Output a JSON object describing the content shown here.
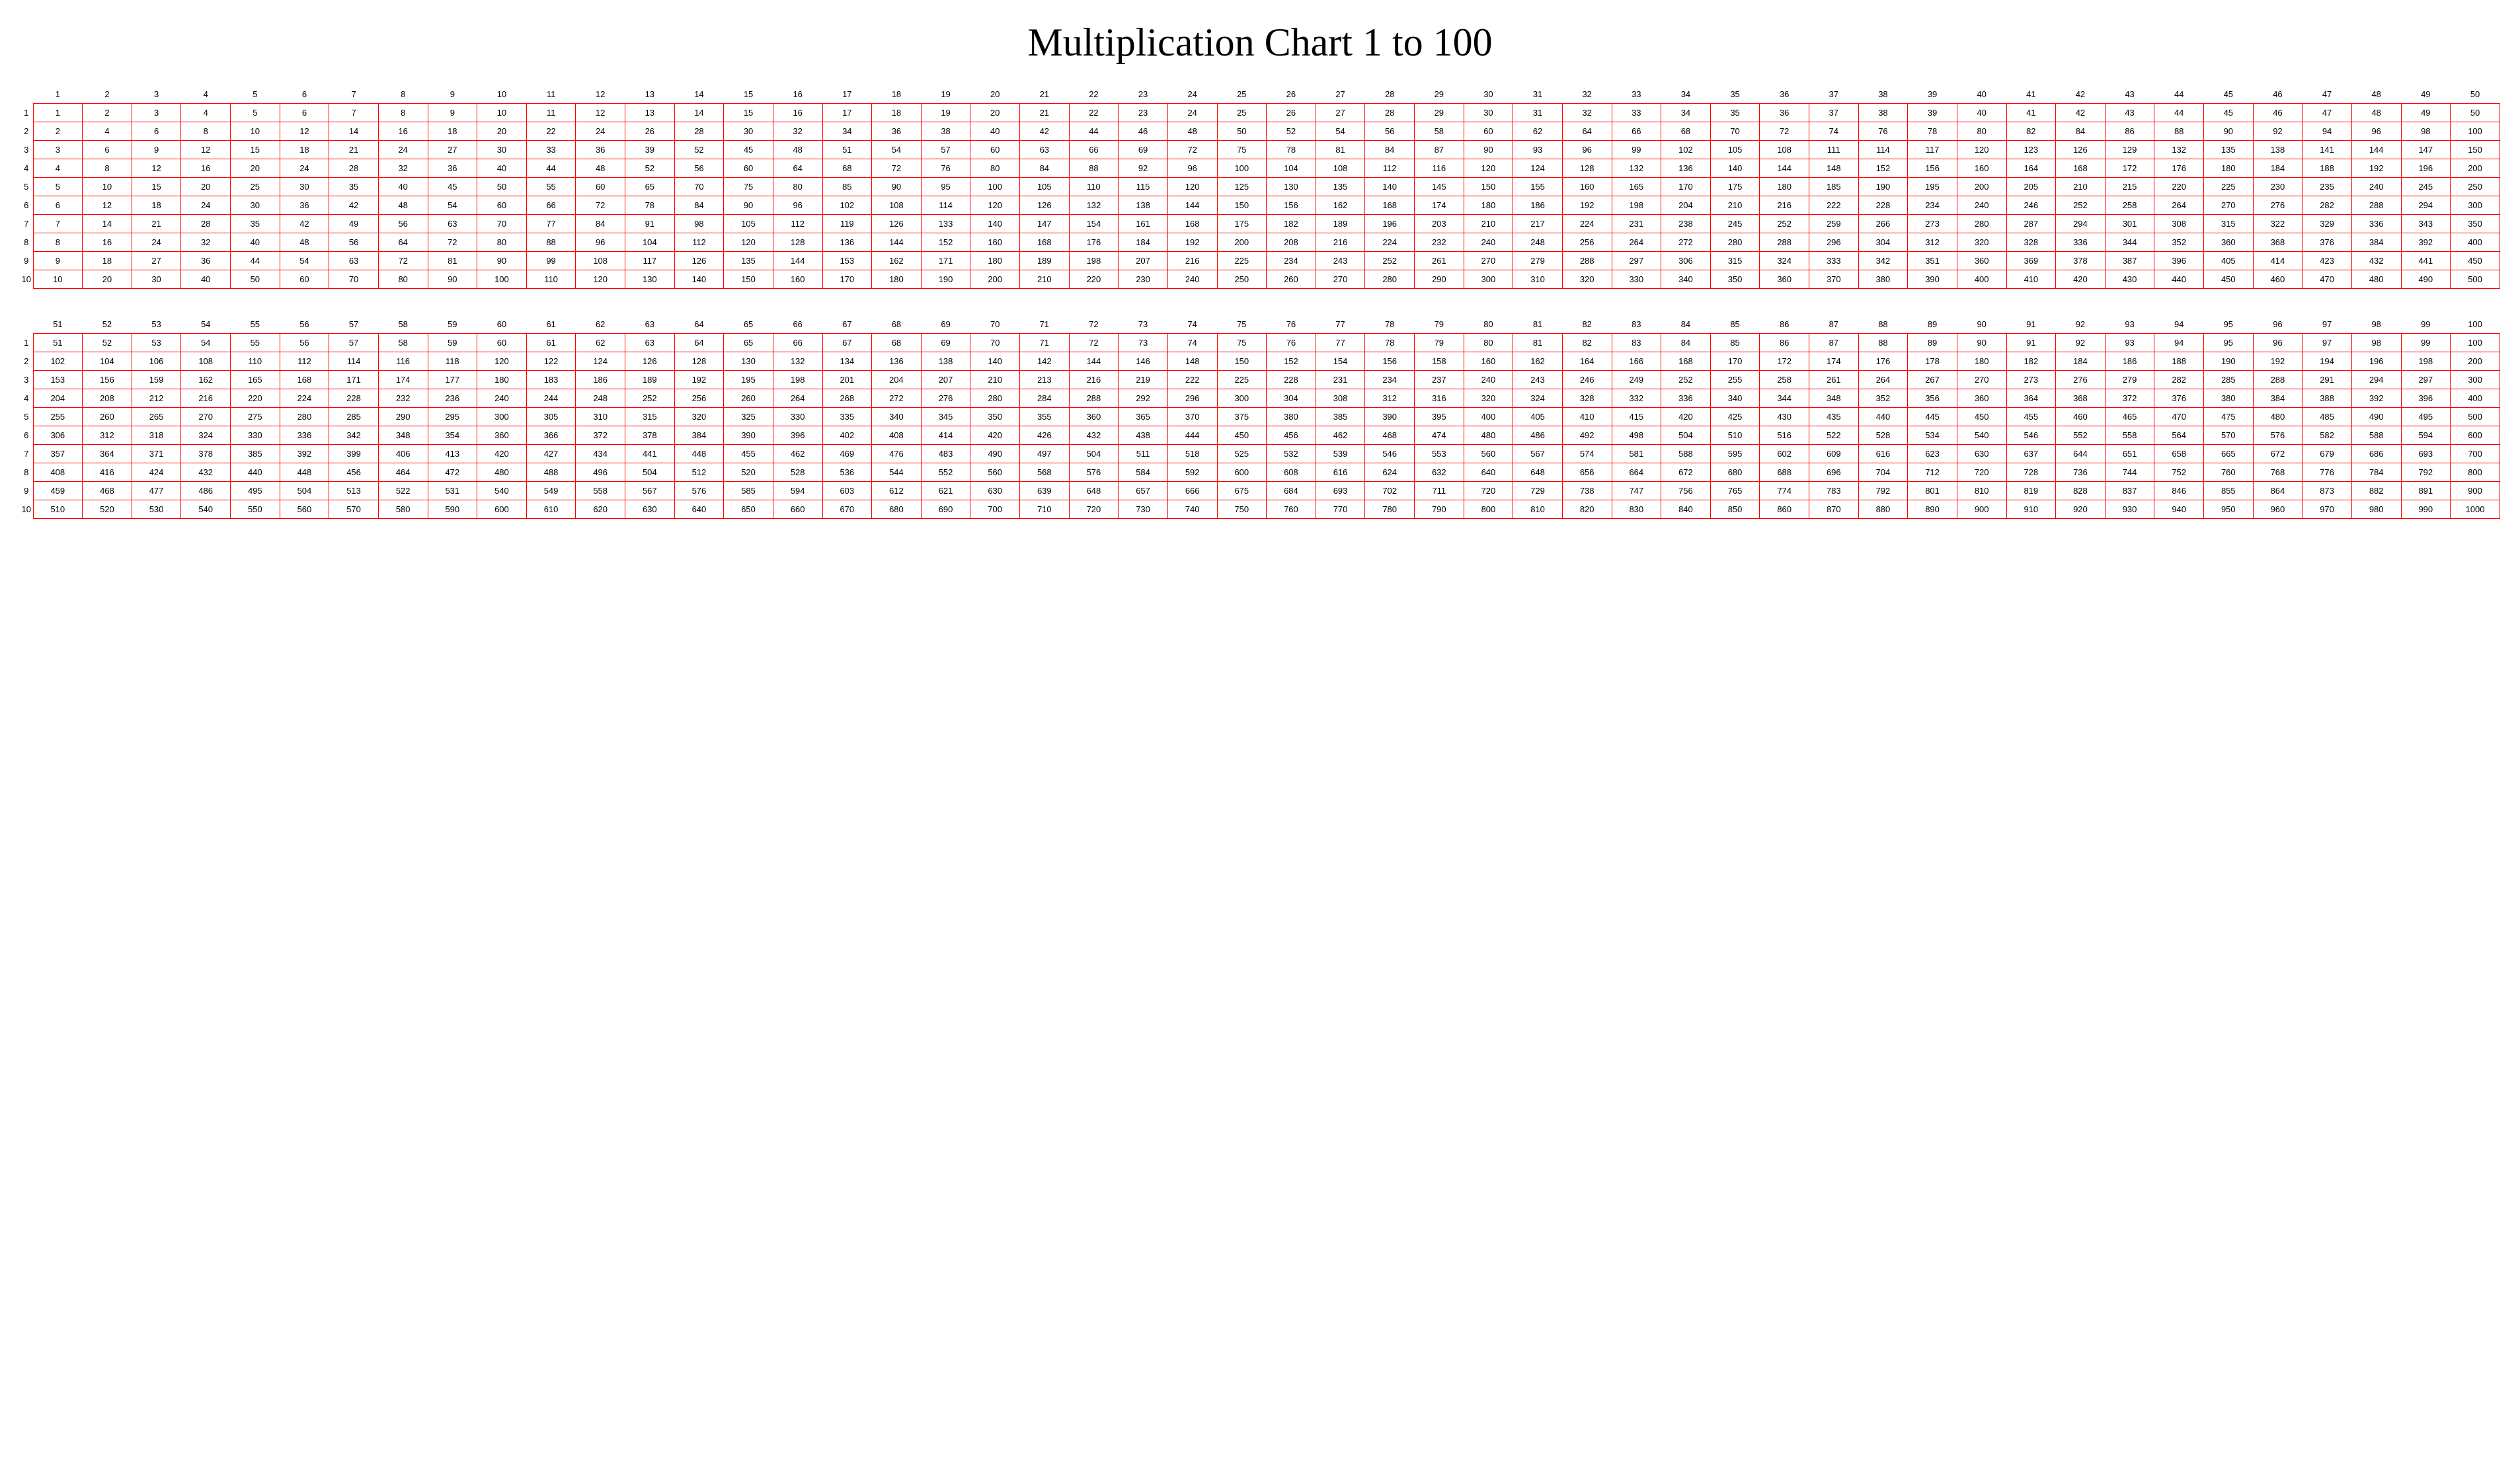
{
  "title": "Multiplication Chart 1 to 100",
  "style": {
    "border_color": "#ff0000",
    "background_color": "#ffffff",
    "text_color": "#000000",
    "title_fontsize": 60,
    "cell_fontsize": 13,
    "title_font_family": "Georgia, 'Times New Roman', serif",
    "cell_font_family": "Arial, Helvetica, sans-serif",
    "border_width": 1
  },
  "chart": {
    "type": "table",
    "row_range": [
      1,
      10
    ],
    "blocks": [
      {
        "col_start": 1,
        "col_end": 50
      },
      {
        "col_start": 51,
        "col_end": 100
      }
    ],
    "row_headers": [
      1,
      2,
      3,
      4,
      5,
      6,
      7,
      8,
      9,
      10
    ],
    "col_headers_block1": [
      1,
      2,
      3,
      4,
      5,
      6,
      7,
      8,
      9,
      10,
      11,
      12,
      13,
      14,
      15,
      16,
      17,
      18,
      19,
      20,
      21,
      22,
      23,
      24,
      25,
      26,
      27,
      28,
      29,
      30,
      31,
      32,
      33,
      34,
      35,
      36,
      37,
      38,
      39,
      40,
      41,
      42,
      43,
      44,
      45,
      46,
      47,
      48,
      49,
      50
    ],
    "col_headers_block2": [
      51,
      52,
      53,
      54,
      55,
      56,
      57,
      58,
      59,
      60,
      61,
      62,
      63,
      64,
      65,
      66,
      67,
      68,
      69,
      70,
      71,
      72,
      73,
      74,
      75,
      76,
      77,
      78,
      79,
      80,
      81,
      82,
      83,
      84,
      85,
      86,
      87,
      88,
      89,
      90,
      91,
      92,
      93,
      94,
      95,
      96,
      97,
      98,
      99,
      100
    ],
    "overrides_block1": {
      "3": {
        "14": 52
      },
      "9": {
        "5": 44
      }
    }
  }
}
